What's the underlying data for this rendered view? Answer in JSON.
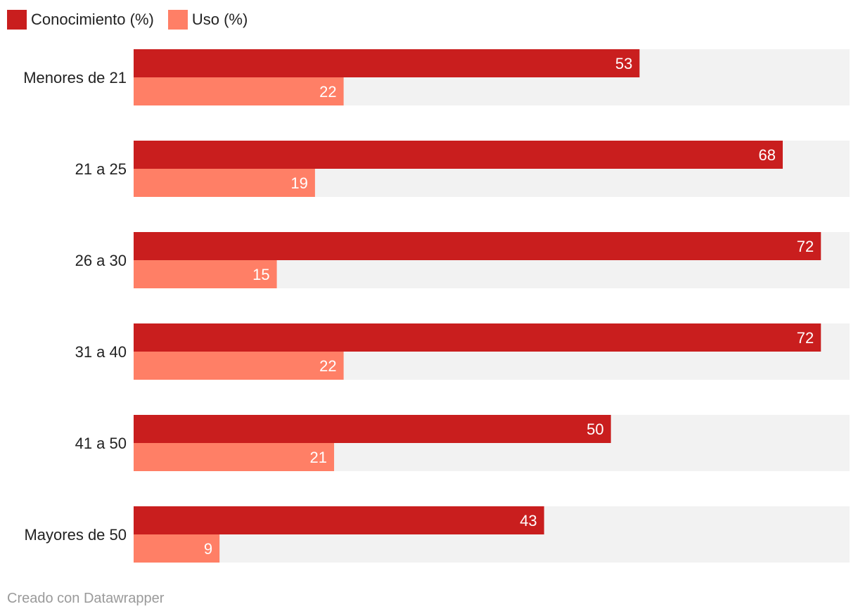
{
  "chart_data": {
    "type": "bar",
    "orientation": "horizontal",
    "grouped": true,
    "categories": [
      "Menores de 21",
      "21 a 25",
      "26 a 30",
      "31 a 40",
      "41 a 50",
      "Mayores de 50"
    ],
    "series": [
      {
        "name": "Conocimiento (%)",
        "color": "#c91e1e",
        "values": [
          53,
          68,
          72,
          72,
          50,
          43
        ]
      },
      {
        "name": "Uso (%)",
        "color": "#ff7f66",
        "values": [
          22,
          19,
          15,
          22,
          21,
          9
        ]
      }
    ],
    "xlim": [
      0,
      75
    ],
    "background_bar_color": "#f2f2f2",
    "data_labels": "inside-end",
    "legend_position": "top-left"
  },
  "footer": {
    "credit": "Creado con Datawrapper"
  }
}
